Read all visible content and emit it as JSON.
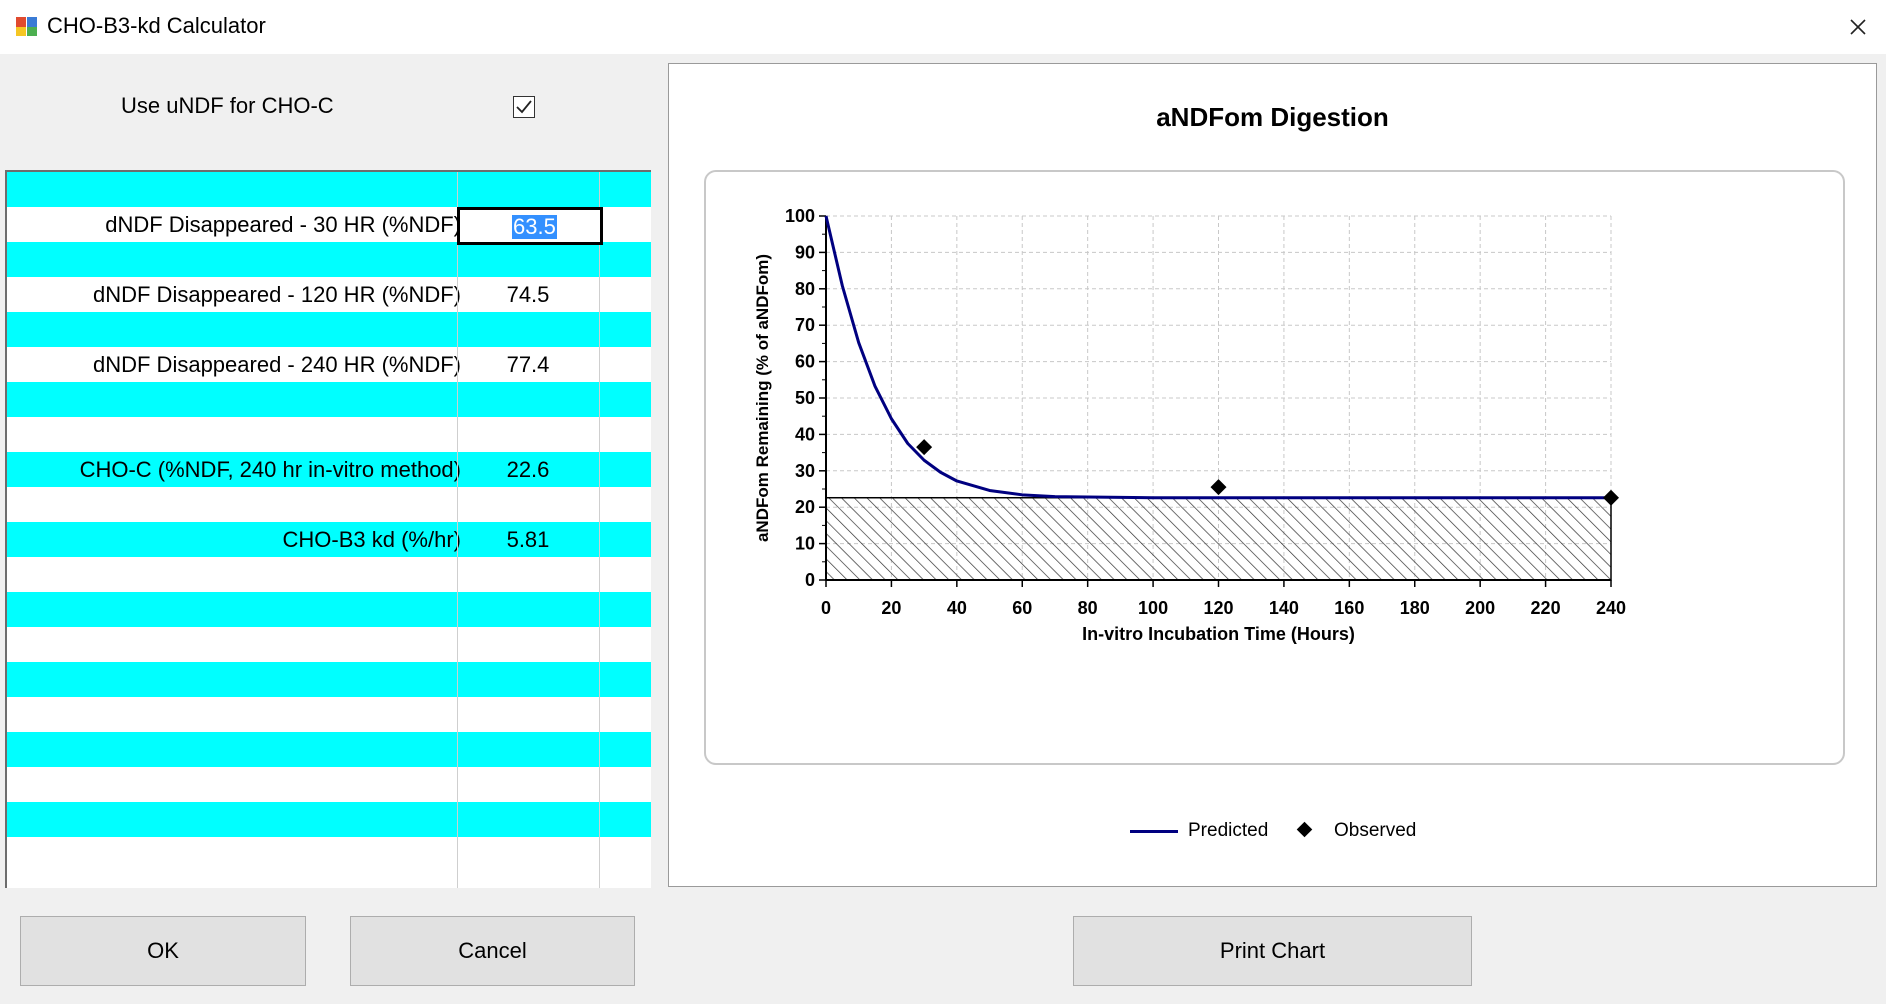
{
  "window": {
    "title": "CHO-B3-kd Calculator",
    "icon": "app-icon",
    "close_icon": "close-icon"
  },
  "options": {
    "use_undf_label": "Use uNDF for CHO-C",
    "use_undf_checked": true
  },
  "grid": {
    "rows": [
      {
        "label": "",
        "value": "",
        "cyan": true
      },
      {
        "label": "dNDF Disappeared - 30 HR (%NDF)",
        "value": "63.5",
        "cyan": false,
        "editing": true
      },
      {
        "label": "",
        "value": "",
        "cyan": true
      },
      {
        "label": "dNDF Disappeared - 120 HR (%NDF)",
        "value": "74.5",
        "cyan": false
      },
      {
        "label": "",
        "value": "",
        "cyan": true
      },
      {
        "label": "dNDF Disappeared - 240 HR (%NDF)",
        "value": "77.4",
        "cyan": false
      },
      {
        "label": "",
        "value": "",
        "cyan": true
      },
      {
        "label": "",
        "value": "",
        "cyan": false
      },
      {
        "label": "CHO-C (%NDF, 240 hr in-vitro method)",
        "value": "22.6",
        "cyan": true
      },
      {
        "label": "",
        "value": "",
        "cyan": false
      },
      {
        "label": "CHO-B3 kd (%/hr)",
        "value": "5.81",
        "cyan": true
      },
      {
        "label": "",
        "value": "",
        "cyan": false
      },
      {
        "label": "",
        "value": "",
        "cyan": true
      },
      {
        "label": "",
        "value": "",
        "cyan": false
      },
      {
        "label": "",
        "value": "",
        "cyan": true
      },
      {
        "label": "",
        "value": "",
        "cyan": false
      },
      {
        "label": "",
        "value": "",
        "cyan": true
      },
      {
        "label": "",
        "value": "",
        "cyan": false
      },
      {
        "label": "",
        "value": "",
        "cyan": true
      },
      {
        "label": "",
        "value": "",
        "cyan": false
      }
    ]
  },
  "chart_data": {
    "type": "line",
    "title": "aNDFom Digestion",
    "xlabel": "In-vitro Incubation Time (Hours)",
    "ylabel": "aNDFom Remaining (% of aNDFom)",
    "xlim": [
      0,
      240
    ],
    "ylim": [
      0,
      100
    ],
    "xticks": [
      0,
      20,
      40,
      60,
      80,
      100,
      120,
      140,
      160,
      180,
      200,
      220,
      240
    ],
    "yticks": [
      0,
      10,
      20,
      30,
      40,
      50,
      60,
      70,
      80,
      90,
      100
    ],
    "grid": true,
    "legend_position": "bottom",
    "series": [
      {
        "name": "Predicted",
        "type": "line",
        "color": "#000080",
        "x": [
          0,
          5,
          10,
          15,
          20,
          25,
          30,
          35,
          40,
          50,
          60,
          70,
          80,
          100,
          120,
          160,
          200,
          240
        ],
        "y": [
          100,
          80.8,
          65.2,
          53.2,
          44.3,
          37.5,
          32.9,
          29.6,
          27.2,
          24.6,
          23.4,
          22.9,
          22.8,
          22.6,
          22.6,
          22.6,
          22.6,
          22.6
        ]
      },
      {
        "name": "Observed",
        "type": "scatter",
        "color": "#000000",
        "marker": "diamond",
        "x": [
          30,
          120,
          240
        ],
        "y": [
          36.5,
          25.5,
          22.6
        ]
      }
    ],
    "shaded_region": {
      "y": [
        0,
        22.6
      ],
      "pattern": "hatch"
    }
  },
  "buttons": {
    "ok": "OK",
    "cancel": "Cancel",
    "print_chart": "Print Chart"
  }
}
